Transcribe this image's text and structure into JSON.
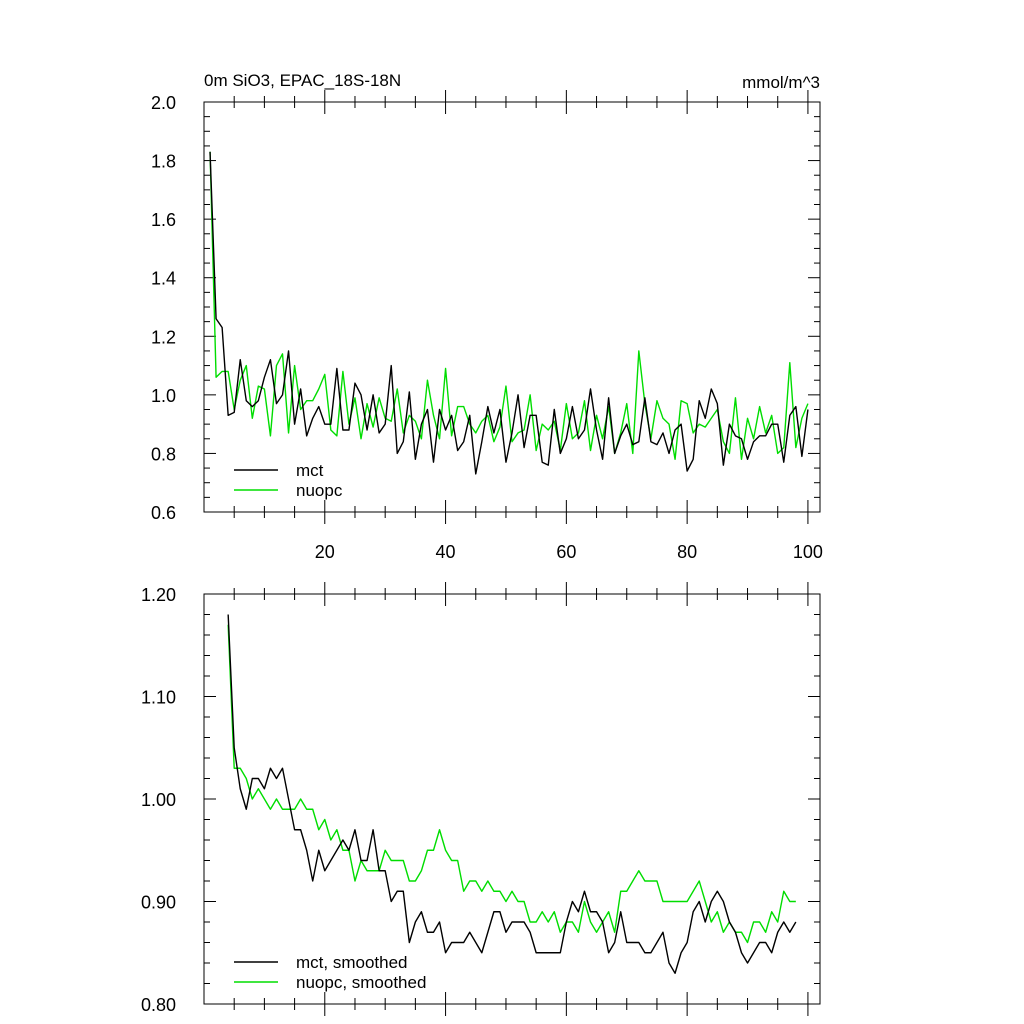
{
  "chart_data": [
    {
      "type": "line",
      "title_left": "0m SiO3, EPAC_18S-18N",
      "title_right": "mmol/m^3",
      "xlabel": "",
      "ylabel": "",
      "xlim": [
        0,
        102
      ],
      "ylim": [
        0.6,
        2.0
      ],
      "x_ticks": [
        20,
        40,
        60,
        80,
        100
      ],
      "x_tick_labels": [
        "20",
        "40",
        "60",
        "80",
        "100"
      ],
      "y_ticks": [
        0.6,
        0.8,
        1.0,
        1.2,
        1.4,
        1.6,
        1.8,
        2.0
      ],
      "y_tick_labels": [
        "0.6",
        "0.8",
        "1.0",
        "1.2",
        "1.4",
        "1.6",
        "1.8",
        "2.0"
      ],
      "legend_position": "bottom-left",
      "x_start": 1,
      "series": [
        {
          "name": "mct",
          "color": "#000000",
          "values": [
            1.83,
            1.26,
            1.23,
            0.93,
            0.94,
            1.12,
            0.98,
            0.96,
            0.98,
            1.06,
            1.12,
            0.97,
            1.0,
            1.15,
            0.9,
            1.02,
            0.86,
            0.92,
            0.96,
            0.9,
            0.9,
            1.09,
            0.88,
            0.88,
            1.04,
            1.0,
            0.88,
            1.0,
            0.87,
            0.9,
            1.1,
            0.8,
            0.84,
            1.01,
            0.78,
            0.9,
            0.95,
            0.77,
            0.95,
            0.88,
            0.93,
            0.81,
            0.84,
            0.93,
            0.73,
            0.84,
            0.96,
            0.87,
            0.95,
            0.77,
            0.87,
            1.0,
            0.82,
            0.93,
            0.93,
            0.77,
            0.76,
            0.95,
            0.8,
            0.85,
            0.96,
            0.85,
            0.88,
            1.02,
            0.88,
            0.78,
            0.99,
            0.8,
            0.86,
            0.9,
            0.83,
            0.84,
            0.99,
            0.84,
            0.83,
            0.87,
            0.8,
            0.88,
            0.9,
            0.74,
            0.78,
            0.98,
            0.92,
            1.02,
            0.97,
            0.76,
            0.9,
            0.86,
            0.85,
            0.78,
            0.84,
            0.86,
            0.86,
            0.9,
            0.9,
            0.77,
            0.93,
            0.96,
            0.79,
            0.95
          ]
        },
        {
          "name": "nuopc",
          "color": "#00dd00",
          "values": [
            1.83,
            1.06,
            1.08,
            1.08,
            0.95,
            1.05,
            1.1,
            0.92,
            1.03,
            1.02,
            0.86,
            1.1,
            1.14,
            0.87,
            1.1,
            0.95,
            0.98,
            0.98,
            1.02,
            1.07,
            0.88,
            0.86,
            1.08,
            0.9,
            0.99,
            0.85,
            0.97,
            0.89,
            0.99,
            0.92,
            0.91,
            1.02,
            0.87,
            0.93,
            0.91,
            0.85,
            1.05,
            0.93,
            0.85,
            1.09,
            0.86,
            0.96,
            0.96,
            0.9,
            0.87,
            0.91,
            0.93,
            0.84,
            0.89,
            1.03,
            0.84,
            0.87,
            0.88,
            1.0,
            0.81,
            0.9,
            0.88,
            0.91,
            0.81,
            0.97,
            0.85,
            0.87,
            0.98,
            0.81,
            0.93,
            0.85,
            0.96,
            0.8,
            0.87,
            0.97,
            0.8,
            1.15,
            0.97,
            0.85,
            0.98,
            0.92,
            0.9,
            0.78,
            0.98,
            0.97,
            0.87,
            0.9,
            0.89,
            0.92,
            0.95,
            0.84,
            0.8,
            0.99,
            0.78,
            0.92,
            0.85,
            0.96,
            0.87,
            0.93,
            0.8,
            0.82,
            1.11,
            0.82,
            0.92,
            0.97
          ]
        }
      ]
    },
    {
      "type": "line",
      "title": "",
      "xlabel": "",
      "ylabel": "",
      "xlim": [
        0,
        102
      ],
      "ylim": [
        0.8,
        1.2
      ],
      "x_ticks": [
        20,
        40,
        60,
        80,
        100
      ],
      "y_ticks": [
        0.8,
        0.9,
        1.0,
        1.1,
        1.2
      ],
      "y_tick_labels": [
        "0.80",
        "0.90",
        "1.00",
        "1.10",
        "1.20"
      ],
      "legend_position": "bottom-left",
      "x_start": 4,
      "series": [
        {
          "name": "mct, smoothed",
          "color": "#000000",
          "values": [
            1.18,
            1.05,
            1.01,
            0.99,
            1.02,
            1.02,
            1.01,
            1.03,
            1.02,
            1.03,
            1.0,
            0.97,
            0.97,
            0.95,
            0.92,
            0.95,
            0.93,
            0.94,
            0.95,
            0.96,
            0.95,
            0.97,
            0.94,
            0.94,
            0.97,
            0.93,
            0.93,
            0.9,
            0.91,
            0.91,
            0.86,
            0.88,
            0.89,
            0.87,
            0.87,
            0.88,
            0.85,
            0.86,
            0.86,
            0.86,
            0.87,
            0.86,
            0.85,
            0.87,
            0.89,
            0.89,
            0.87,
            0.88,
            0.88,
            0.88,
            0.87,
            0.85,
            0.85,
            0.85,
            0.85,
            0.85,
            0.88,
            0.9,
            0.89,
            0.91,
            0.89,
            0.89,
            0.88,
            0.85,
            0.86,
            0.89,
            0.86,
            0.86,
            0.86,
            0.85,
            0.85,
            0.86,
            0.87,
            0.84,
            0.83,
            0.85,
            0.86,
            0.89,
            0.9,
            0.88,
            0.9,
            0.91,
            0.9,
            0.88,
            0.87,
            0.85,
            0.84,
            0.85,
            0.86,
            0.86,
            0.85,
            0.87,
            0.88,
            0.87,
            0.88
          ]
        },
        {
          "name": "nuopc, smoothed",
          "color": "#00dd00",
          "values": [
            1.17,
            1.03,
            1.03,
            1.02,
            1.0,
            1.01,
            1.0,
            0.99,
            1.0,
            0.99,
            0.99,
            0.99,
            1.0,
            0.99,
            0.99,
            0.97,
            0.98,
            0.96,
            0.97,
            0.95,
            0.95,
            0.92,
            0.94,
            0.93,
            0.93,
            0.93,
            0.95,
            0.94,
            0.94,
            0.94,
            0.92,
            0.92,
            0.93,
            0.95,
            0.95,
            0.97,
            0.95,
            0.94,
            0.94,
            0.91,
            0.92,
            0.92,
            0.91,
            0.92,
            0.91,
            0.91,
            0.9,
            0.91,
            0.9,
            0.9,
            0.88,
            0.88,
            0.89,
            0.88,
            0.89,
            0.87,
            0.88,
            0.88,
            0.87,
            0.9,
            0.88,
            0.87,
            0.88,
            0.89,
            0.87,
            0.91,
            0.91,
            0.92,
            0.93,
            0.92,
            0.92,
            0.92,
            0.9,
            0.9,
            0.9,
            0.9,
            0.9,
            0.91,
            0.92,
            0.9,
            0.88,
            0.89,
            0.87,
            0.88,
            0.87,
            0.87,
            0.86,
            0.88,
            0.88,
            0.87,
            0.89,
            0.88,
            0.91,
            0.9,
            0.9
          ]
        }
      ]
    }
  ]
}
